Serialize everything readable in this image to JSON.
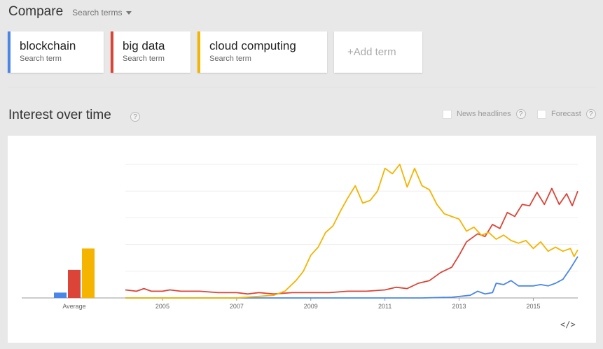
{
  "header": {
    "title": "Compare",
    "search_terms_label": "Search terms"
  },
  "terms": [
    {
      "name": "blockchain",
      "sub": "Search term",
      "color": "#4a86e8"
    },
    {
      "name": "big data",
      "sub": "Search term",
      "color": "#db4437"
    },
    {
      "name": "cloud computing",
      "sub": "Search term",
      "color": "#f4b400"
    }
  ],
  "add_term_label": "+Add term",
  "section": {
    "title": "Interest over time",
    "help": "?",
    "news_label": "News headlines",
    "forecast_label": "Forecast"
  },
  "embed_label": "</>",
  "chart_data": {
    "type": "line",
    "title": "Interest over time",
    "ylim": [
      0,
      100
    ],
    "xlim": [
      2004.0,
      2016.2
    ],
    "x_ticks": [
      2005,
      2007,
      2009,
      2011,
      2013,
      2015
    ],
    "grid": "horizontal",
    "average_bars": {
      "label": "Average",
      "values": [
        {
          "series": "blockchain",
          "value": 4
        },
        {
          "series": "big data",
          "value": 21
        },
        {
          "series": "cloud computing",
          "value": 37
        }
      ]
    },
    "series": [
      {
        "name": "blockchain",
        "color": "#4a86e8",
        "points": [
          [
            2004.0,
            0
          ],
          [
            2012.0,
            0
          ],
          [
            2012.8,
            0.5
          ],
          [
            2013.3,
            2
          ],
          [
            2013.5,
            5
          ],
          [
            2013.7,
            3
          ],
          [
            2013.9,
            4
          ],
          [
            2014.0,
            11
          ],
          [
            2014.2,
            10
          ],
          [
            2014.4,
            13
          ],
          [
            2014.6,
            9
          ],
          [
            2014.8,
            9
          ],
          [
            2015.0,
            9
          ],
          [
            2015.2,
            10
          ],
          [
            2015.4,
            9
          ],
          [
            2015.6,
            11
          ],
          [
            2015.8,
            14
          ],
          [
            2016.0,
            22
          ],
          [
            2016.2,
            31
          ]
        ]
      },
      {
        "name": "big data",
        "color": "#db4437",
        "points": [
          [
            2004.0,
            6
          ],
          [
            2004.3,
            5
          ],
          [
            2004.5,
            7
          ],
          [
            2004.7,
            5
          ],
          [
            2005.0,
            5
          ],
          [
            2005.2,
            6
          ],
          [
            2005.5,
            5
          ],
          [
            2006.0,
            5
          ],
          [
            2006.5,
            4
          ],
          [
            2007.0,
            4
          ],
          [
            2007.3,
            3
          ],
          [
            2007.6,
            4
          ],
          [
            2008.0,
            3
          ],
          [
            2008.5,
            4
          ],
          [
            2009.0,
            4
          ],
          [
            2009.5,
            4
          ],
          [
            2010.0,
            5
          ],
          [
            2010.5,
            5
          ],
          [
            2011.0,
            6
          ],
          [
            2011.3,
            8
          ],
          [
            2011.6,
            7
          ],
          [
            2011.9,
            11
          ],
          [
            2012.2,
            13
          ],
          [
            2012.5,
            19
          ],
          [
            2012.8,
            23
          ],
          [
            2013.0,
            32
          ],
          [
            2013.2,
            42
          ],
          [
            2013.5,
            48
          ],
          [
            2013.7,
            46
          ],
          [
            2013.9,
            55
          ],
          [
            2014.1,
            52
          ],
          [
            2014.3,
            64
          ],
          [
            2014.5,
            61
          ],
          [
            2014.7,
            70
          ],
          [
            2014.9,
            69
          ],
          [
            2015.1,
            79
          ],
          [
            2015.3,
            70
          ],
          [
            2015.5,
            82
          ],
          [
            2015.7,
            70
          ],
          [
            2015.9,
            78
          ],
          [
            2016.05,
            69
          ],
          [
            2016.2,
            80
          ]
        ]
      },
      {
        "name": "cloud computing",
        "color": "#f4b400",
        "points": [
          [
            2004.0,
            0
          ],
          [
            2007.0,
            0
          ],
          [
            2007.5,
            1
          ],
          [
            2008.0,
            2
          ],
          [
            2008.3,
            5
          ],
          [
            2008.6,
            13
          ],
          [
            2008.8,
            20
          ],
          [
            2009.0,
            32
          ],
          [
            2009.2,
            38
          ],
          [
            2009.4,
            49
          ],
          [
            2009.6,
            54
          ],
          [
            2009.8,
            65
          ],
          [
            2010.0,
            75
          ],
          [
            2010.2,
            84
          ],
          [
            2010.4,
            71
          ],
          [
            2010.6,
            73
          ],
          [
            2010.8,
            80
          ],
          [
            2011.0,
            97
          ],
          [
            2011.2,
            93
          ],
          [
            2011.4,
            100
          ],
          [
            2011.6,
            83
          ],
          [
            2011.8,
            97
          ],
          [
            2012.0,
            84
          ],
          [
            2012.2,
            81
          ],
          [
            2012.4,
            70
          ],
          [
            2012.6,
            63
          ],
          [
            2012.8,
            61
          ],
          [
            2013.0,
            59
          ],
          [
            2013.2,
            50
          ],
          [
            2013.4,
            53
          ],
          [
            2013.6,
            47
          ],
          [
            2013.8,
            49
          ],
          [
            2014.0,
            44
          ],
          [
            2014.2,
            47
          ],
          [
            2014.4,
            43
          ],
          [
            2014.6,
            41
          ],
          [
            2014.8,
            43
          ],
          [
            2015.0,
            37
          ],
          [
            2015.2,
            42
          ],
          [
            2015.4,
            35
          ],
          [
            2015.6,
            38
          ],
          [
            2015.8,
            35
          ],
          [
            2016.0,
            37
          ],
          [
            2016.1,
            31
          ],
          [
            2016.2,
            36
          ]
        ]
      }
    ]
  }
}
